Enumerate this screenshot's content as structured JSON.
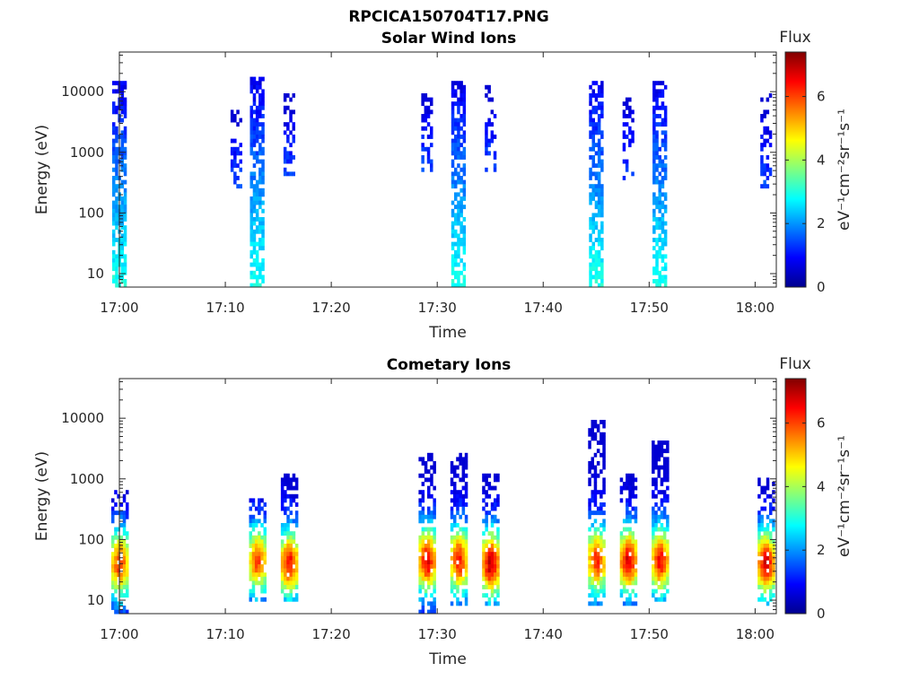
{
  "figure": {
    "title": "RPCICA150704T17.PNG"
  },
  "colorbar": {
    "label": "Flux",
    "unit_label": "eV⁻¹cm⁻²sr⁻¹s⁻¹",
    "ticks": [
      "0",
      "2",
      "4",
      "6"
    ],
    "range": [
      0,
      7.4
    ],
    "colormap": "jet"
  },
  "chart_data": [
    {
      "type": "heatmap",
      "title": "Solar Wind Ions",
      "xlabel": "Time",
      "ylabel": "Energy (eV)",
      "y_scale": "log",
      "ylim": [
        6,
        45000
      ],
      "xlim": [
        "17:00",
        "18:02"
      ],
      "x_tick_labels": [
        "17:00",
        "17:10",
        "17:20",
        "17:30",
        "17:40",
        "17:50",
        "18:00"
      ],
      "y_tick_labels": [
        "10",
        "100",
        "1000",
        "10000"
      ],
      "colorbar_label": "Flux",
      "colorbar_ticks": [
        "0",
        "2",
        "4",
        "6"
      ],
      "bursts": [
        {
          "time": "17:00",
          "min_energy_eV": 6,
          "max_energy_eV": 16000,
          "peak_flux": 3.0
        },
        {
          "time": "17:11",
          "min_energy_eV": 250,
          "max_energy_eV": 5000,
          "peak_flux": 1.5
        },
        {
          "time": "17:13",
          "min_energy_eV": 6,
          "max_energy_eV": 17000,
          "peak_flux": 3.0
        },
        {
          "time": "17:16",
          "min_energy_eV": 400,
          "max_energy_eV": 9000,
          "peak_flux": 1.5
        },
        {
          "time": "17:29",
          "min_energy_eV": 500,
          "max_energy_eV": 10000,
          "peak_flux": 1.5
        },
        {
          "time": "17:32",
          "min_energy_eV": 6,
          "max_energy_eV": 15000,
          "peak_flux": 3.0
        },
        {
          "time": "17:35",
          "min_energy_eV": 500,
          "max_energy_eV": 12000,
          "peak_flux": 1.5
        },
        {
          "time": "17:45",
          "min_energy_eV": 6,
          "max_energy_eV": 15000,
          "peak_flux": 3.0
        },
        {
          "time": "17:48",
          "min_energy_eV": 300,
          "max_energy_eV": 8000,
          "peak_flux": 1.5
        },
        {
          "time": "17:51",
          "min_energy_eV": 6,
          "max_energy_eV": 15000,
          "peak_flux": 3.0
        },
        {
          "time": "18:01",
          "min_energy_eV": 250,
          "max_energy_eV": 9000,
          "peak_flux": 1.5
        }
      ]
    },
    {
      "type": "heatmap",
      "title": "Cometary Ions",
      "xlabel": "Time",
      "ylabel": "Energy (eV)",
      "y_scale": "log",
      "ylim": [
        6,
        45000
      ],
      "xlim": [
        "17:00",
        "18:02"
      ],
      "x_tick_labels": [
        "17:00",
        "17:10",
        "17:20",
        "17:30",
        "17:40",
        "17:50",
        "18:00"
      ],
      "y_tick_labels": [
        "10",
        "100",
        "1000",
        "10000"
      ],
      "colorbar_label": "Flux",
      "colorbar_ticks": [
        "0",
        "2",
        "4",
        "6"
      ],
      "bursts": [
        {
          "time": "17:00",
          "min_energy_eV": 6,
          "max_energy_eV": 700,
          "peak_energy_eV": 40,
          "peak_flux": 5.0
        },
        {
          "time": "17:13",
          "min_energy_eV": 10,
          "max_energy_eV": 500,
          "peak_energy_eV": 45,
          "peak_flux": 4.8
        },
        {
          "time": "17:16",
          "min_energy_eV": 10,
          "max_energy_eV": 1200,
          "peak_energy_eV": 40,
          "peak_flux": 5.3
        },
        {
          "time": "17:29",
          "min_energy_eV": 6,
          "max_energy_eV": 2500,
          "peak_energy_eV": 45,
          "peak_flux": 5.5
        },
        {
          "time": "17:32",
          "min_energy_eV": 8,
          "max_energy_eV": 2800,
          "peak_energy_eV": 45,
          "peak_flux": 5.2
        },
        {
          "time": "17:35",
          "min_energy_eV": 8,
          "max_energy_eV": 1300,
          "peak_energy_eV": 40,
          "peak_flux": 5.8
        },
        {
          "time": "17:45",
          "min_energy_eV": 8,
          "max_energy_eV": 9000,
          "peak_energy_eV": 45,
          "peak_flux": 5.0
        },
        {
          "time": "17:48",
          "min_energy_eV": 8,
          "max_energy_eV": 1300,
          "peak_energy_eV": 45,
          "peak_flux": 5.6
        },
        {
          "time": "17:51",
          "min_energy_eV": 10,
          "max_energy_eV": 4000,
          "peak_energy_eV": 45,
          "peak_flux": 5.3
        },
        {
          "time": "18:01",
          "min_energy_eV": 8,
          "max_energy_eV": 1100,
          "peak_energy_eV": 40,
          "peak_flux": 5.6
        }
      ]
    }
  ]
}
